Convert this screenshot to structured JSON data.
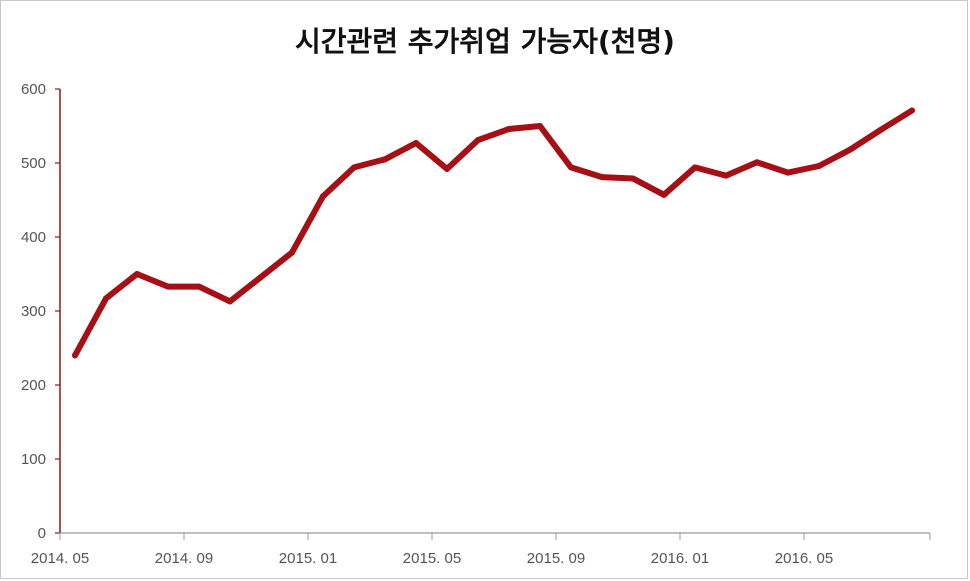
{
  "chart_data": {
    "type": "line",
    "title": "시간관련 추가취업 가능자(천명)",
    "xlabel": "",
    "ylabel": "",
    "ylim": [
      0,
      600
    ],
    "yticks": [
      0,
      100,
      200,
      300,
      400,
      500,
      600
    ],
    "grid": false,
    "line_color": "#a50f15",
    "axis_color": "#8b1a1a",
    "x_tick_labels": [
      "2014. 05",
      "2014. 09",
      "2015. 01",
      "2015. 05",
      "2015. 09",
      "2016. 01",
      "2016. 05"
    ],
    "x": [
      "2014-05",
      "2014-06",
      "2014-07",
      "2014-08",
      "2014-09",
      "2014-10",
      "2014-11",
      "2014-12",
      "2015-01",
      "2015-02",
      "2015-03",
      "2015-04",
      "2015-05",
      "2015-06",
      "2015-07",
      "2015-08",
      "2015-09",
      "2015-10",
      "2015-11",
      "2015-12",
      "2016-01",
      "2016-02",
      "2016-03",
      "2016-04",
      "2016-05",
      "2016-06",
      "2016-07",
      "2016-08"
    ],
    "series": [
      {
        "values": [
          240,
          317,
          350,
          333,
          333,
          313,
          346,
          379,
          455,
          494,
          505,
          527,
          492,
          531,
          546,
          550,
          494,
          481,
          479,
          457,
          494,
          483,
          501,
          487,
          496,
          518,
          545,
          571
        ]
      }
    ]
  }
}
